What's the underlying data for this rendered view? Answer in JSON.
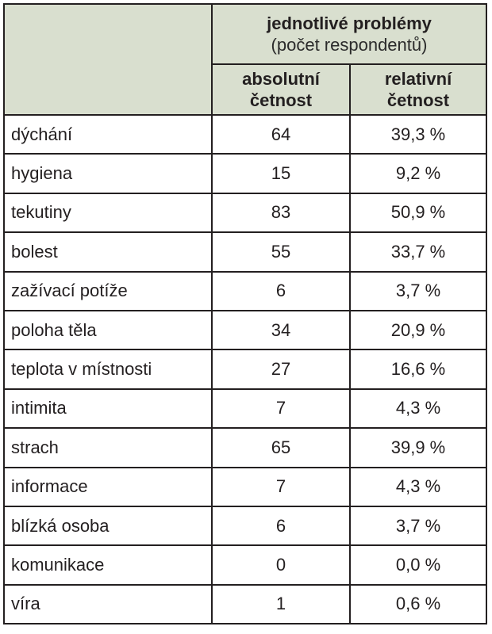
{
  "header": {
    "group_title": "jednotlivé problémy",
    "group_subtitle": "(počet respondentů)",
    "col_abs_line1": "absolutní",
    "col_abs_line2": "četnost",
    "col_rel_line1": "relativní",
    "col_rel_line2": "četnost"
  },
  "rows": [
    {
      "label": "dýchání",
      "absolute": "64",
      "relative": "39,3 %"
    },
    {
      "label": "hygiena",
      "absolute": "15",
      "relative": "9,2 %"
    },
    {
      "label": "tekutiny",
      "absolute": "83",
      "relative": "50,9 %"
    },
    {
      "label": "bolest",
      "absolute": "55",
      "relative": "33,7 %"
    },
    {
      "label": "zažívací potíže",
      "absolute": "6",
      "relative": "3,7 %"
    },
    {
      "label": "poloha těla",
      "absolute": "34",
      "relative": "20,9 %"
    },
    {
      "label": "teplota v místnosti",
      "absolute": "27",
      "relative": "16,6 %"
    },
    {
      "label": "intimita",
      "absolute": "7",
      "relative": "4,3 %"
    },
    {
      "label": "strach",
      "absolute": "65",
      "relative": "39,9 %"
    },
    {
      "label": "informace",
      "absolute": "7",
      "relative": "4,3 %"
    },
    {
      "label": "blízká osoba",
      "absolute": "6",
      "relative": "3,7 %"
    },
    {
      "label": "komunikace",
      "absolute": "0",
      "relative": "0,0 %"
    },
    {
      "label": "víra",
      "absolute": "1",
      "relative": "0,6 %"
    }
  ],
  "colors": {
    "header_background": "#d9dfcf",
    "border": "#231f20",
    "text": "#231f20"
  }
}
